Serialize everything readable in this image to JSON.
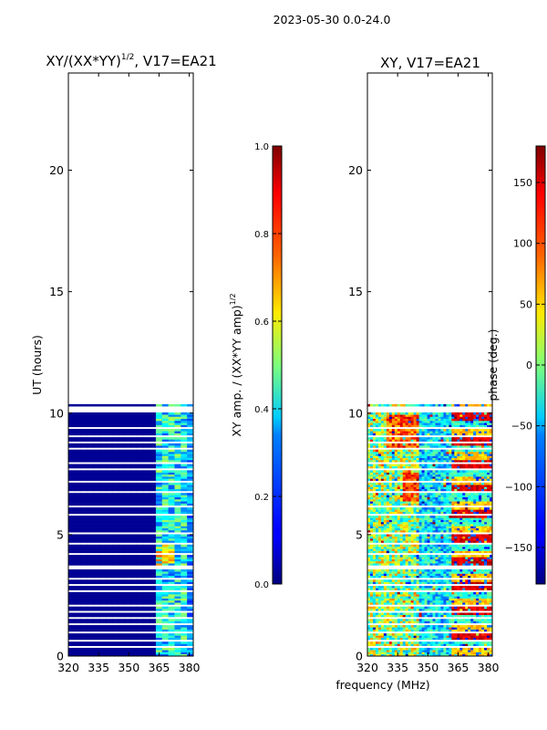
{
  "suptitle": "2023-05-30 0.0-24.0",
  "xlabel_shared": "frequency (MHz)",
  "colormap": "jet",
  "chart_data": [
    {
      "type": "heatmap",
      "title_main": "XY/(XX*YY)",
      "title_sup": "1/2",
      "title_tail": ", V17=EA21",
      "ylabel": "UT (hours)",
      "xlim": [
        320,
        382
      ],
      "ylim": [
        0,
        24
      ],
      "xticks": [
        320,
        335,
        350,
        365,
        380
      ],
      "yticks": [
        0,
        5,
        10,
        15,
        20
      ],
      "data_extent_hours": [
        0,
        10.35
      ],
      "colorbar": {
        "label_main": "XY amp. / (XX*YY amp)",
        "label_sup": "1/2",
        "range": [
          0.0,
          1.0
        ],
        "ticks": [
          "0.0",
          "0.2",
          "0.4",
          "0.6",
          "0.8",
          "1.0"
        ]
      }
    },
    {
      "type": "heatmap",
      "title": "XY, V17=EA21",
      "ylabel": "",
      "xlim": [
        320,
        382
      ],
      "ylim": [
        0,
        24
      ],
      "xticks": [
        320,
        335,
        350,
        365,
        380
      ],
      "yticks": [
        0,
        5,
        10,
        15,
        20
      ],
      "data_extent_hours": [
        0,
        10.35
      ],
      "colorbar": {
        "label": "phase (deg.)",
        "range": [
          -180,
          180
        ],
        "ticks": [
          "−150",
          "−100",
          "−50",
          "0",
          "50",
          "100",
          "150"
        ]
      }
    }
  ]
}
